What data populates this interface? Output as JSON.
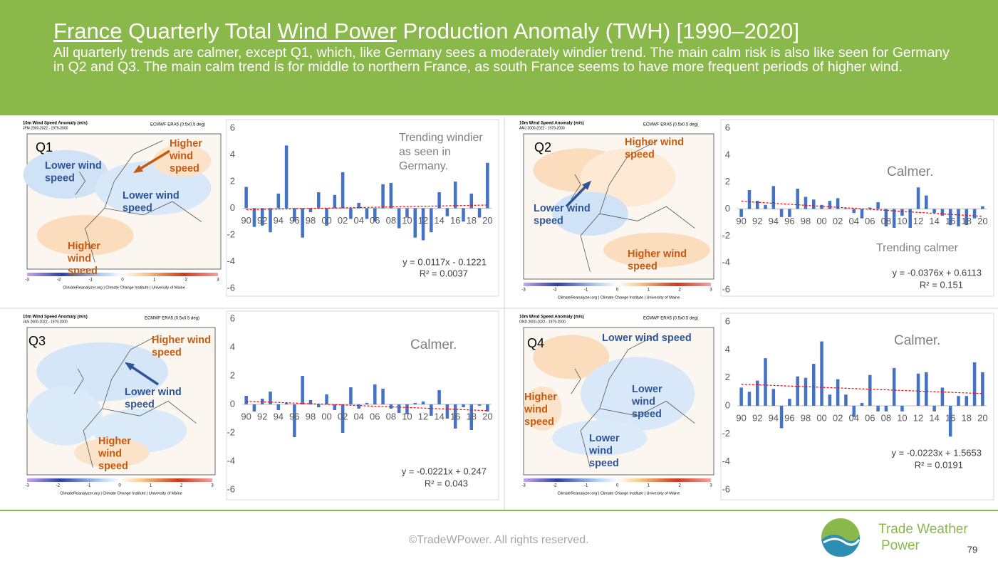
{
  "header": {
    "title_parts": [
      {
        "text": "France",
        "underline": true
      },
      {
        "text": " Quarterly Total ",
        "underline": false
      },
      {
        "text": "Wind Power",
        "underline": true
      },
      {
        "text": " Production Anomaly (TWH) [1990–2020]",
        "underline": false
      }
    ],
    "subtitle": "All quarterly trends are calmer, except Q1, which, like Germany sees a moderately windier trend. The main calm risk is also like seen for Germany in Q2 and Q3. The main calm trend is for middle to northern France, as south France seems to have more frequent periods of higher wind."
  },
  "maps": [
    {
      "quarter": "Q1",
      "title": "10m Wind Speed Anomaly (m/s)",
      "period": "JFM 2000-2022 - 1979-2000",
      "source": "ECMWF ERA5 (0.5x0.5 deg)",
      "colorbar_ticks": [
        -3,
        -2,
        -1,
        0,
        1,
        2,
        3
      ],
      "credit": "ClimateReanalyzer.org | Climate Change Institute | University of Maine",
      "labels": [
        {
          "lines": [
            "Lower wind",
            "speed"
          ],
          "color": "#2e5597"
        },
        {
          "lines": [
            "Higher",
            "wind",
            "speed"
          ],
          "color": "#c55a11"
        },
        {
          "lines": [
            "Lower wind",
            "speed"
          ],
          "color": "#2e5597"
        },
        {
          "lines": [
            "Higher",
            "wind",
            "speed"
          ],
          "color": "#c55a11"
        }
      ]
    },
    {
      "quarter": "Q2",
      "title": "10m Wind Speed Anomaly (m/s)",
      "period": "AMJ 2000-2022 - 1979-2000",
      "source": "ECMWF ERA5 (0.5x0.5 deg)",
      "colorbar_ticks": [
        -3,
        -2,
        -1,
        0,
        1,
        2,
        3
      ],
      "credit": "ClimateReanalyzer.org | Climate Change Institute | University of Maine",
      "labels": [
        {
          "lines": [
            "Higher wind",
            "speed"
          ],
          "color": "#c55a11"
        },
        {
          "lines": [
            "Lower wind",
            "speed"
          ],
          "color": "#2e5597"
        },
        {
          "lines": [
            "Higher wind",
            "speed"
          ],
          "color": "#c55a11"
        }
      ]
    },
    {
      "quarter": "Q3",
      "title": "10m Wind Speed Anomaly (m/s)",
      "period": "JAS 2000-2022 - 1979-2000",
      "source": "ECMWF ERA5 (0.5x0.5 deg)",
      "colorbar_ticks": [
        -3,
        -2,
        -1,
        0,
        1,
        2,
        3
      ],
      "credit": "ClimateReanalyzer.org | Climate Change Institute | University of Maine",
      "labels": [
        {
          "lines": [
            "Higher wind",
            "speed"
          ],
          "color": "#c55a11"
        },
        {
          "lines": [
            "Lower wind",
            "speed"
          ],
          "color": "#2e5597"
        },
        {
          "lines": [
            "Higher",
            "wind",
            "speed"
          ],
          "color": "#c55a11"
        }
      ]
    },
    {
      "quarter": "Q4",
      "title": "10m Wind Speed Anomaly (m/s)",
      "period": "OND 2000-2022 - 1979-2000",
      "source": "ECMWF ERA5 (0.5x0.5 deg)",
      "colorbar_ticks": [
        -3,
        -2,
        -1,
        0,
        1,
        2,
        3
      ],
      "credit": "ClimateReanalyzer.org | Climate Change Institute | University of Maine",
      "labels": [
        {
          "lines": [
            "Lower wind speed"
          ],
          "color": "#2e5597"
        },
        {
          "lines": [
            "Higher",
            "wind",
            "speed"
          ],
          "color": "#c55a11"
        },
        {
          "lines": [
            "Lower",
            "wind",
            "speed"
          ],
          "color": "#2e5597"
        },
        {
          "lines": [
            "Lower",
            "wind",
            "speed"
          ],
          "color": "#2e5597"
        }
      ]
    }
  ],
  "chart_data": [
    {
      "type": "bar",
      "categories": [
        "90",
        null,
        "92",
        null,
        "94",
        null,
        "96",
        null,
        "98",
        null,
        "00",
        null,
        "02",
        null,
        "04",
        null,
        "06",
        null,
        "08",
        null,
        "10",
        null,
        "12",
        null,
        "14",
        null,
        "16",
        null,
        "18",
        null,
        "20"
      ],
      "values": [
        1.6,
        -1.4,
        -1.3,
        -1.8,
        1.1,
        4.7,
        -1.0,
        -2.2,
        -0.3,
        1.2,
        -1.3,
        1.0,
        2.7,
        -0.8,
        0.4,
        -0.8,
        -1.0,
        1.8,
        1.9,
        -1.5,
        -0.7,
        -2.2,
        -2.4,
        -1.8,
        1.2,
        -0.6,
        2.0,
        -1.0,
        1.1,
        -0.7,
        3.4
      ],
      "color": "#4472c4",
      "ylim": [
        -6,
        6
      ],
      "yticks": [
        -6,
        -4,
        -2,
        0,
        2,
        4,
        6
      ],
      "grid": false,
      "trendline": {
        "slope": 0.0117,
        "intercept": -0.1221,
        "color": "#ff0000",
        "label": "y = 0.0117x - 0.1221",
        "r2_label": "R² = 0.0037"
      },
      "annotations": [
        [
          "Trending windier",
          "as seen in",
          "Germany."
        ]
      ]
    },
    {
      "type": "bar",
      "categories": [
        "90",
        null,
        "92",
        null,
        "94",
        null,
        "96",
        null,
        "98",
        null,
        "00",
        null,
        "02",
        null,
        "04",
        null,
        "06",
        null,
        "08",
        null,
        "10",
        null,
        "12",
        null,
        "14",
        null,
        "16",
        null,
        "18",
        null,
        "20"
      ],
      "values": [
        -0.6,
        1.4,
        0.6,
        0.3,
        1.7,
        -0.6,
        -0.6,
        1.5,
        0.9,
        0.7,
        0.3,
        0.6,
        0.8,
        0.05,
        -0.3,
        -0.7,
        0.1,
        0.5,
        -1.3,
        -1.4,
        -0.5,
        -1.4,
        1.6,
        1.0,
        -0.3,
        -0.5,
        -1.2,
        -1.3,
        -1.2,
        -0.7,
        0.2
      ],
      "color": "#4472c4",
      "ylim": [
        -6,
        6
      ],
      "yticks": [
        -6,
        -4,
        -2,
        0,
        2,
        4,
        6
      ],
      "grid": false,
      "trendline": {
        "slope": -0.0376,
        "intercept": 0.6113,
        "color": "#ff0000",
        "label": "y = -0.0376x + 0.6113",
        "r2_label": "R² = 0.151"
      },
      "annotations": [
        [
          "Calmer."
        ],
        [
          "Trending calmer"
        ]
      ]
    },
    {
      "type": "bar",
      "categories": [
        "90",
        null,
        "92",
        null,
        "94",
        null,
        "96",
        null,
        "98",
        null,
        "00",
        null,
        "02",
        null,
        "04",
        null,
        "06",
        null,
        "08",
        null,
        "10",
        null,
        "12",
        null,
        "14",
        null,
        "16",
        null,
        "18",
        null,
        "20"
      ],
      "values": [
        0.6,
        -0.5,
        0.4,
        0.9,
        -0.4,
        0.1,
        -2.3,
        2.0,
        0.3,
        -0.2,
        0.7,
        -0.4,
        -2.0,
        1.2,
        -0.3,
        0.1,
        1.4,
        1.1,
        -0.3,
        -0.6,
        -0.7,
        0.1,
        0.2,
        -0.8,
        1.0,
        -1.0,
        -1.7,
        -0.2,
        -1.8,
        -0.1,
        -0.5
      ],
      "color": "#4472c4",
      "ylim": [
        -6,
        6
      ],
      "yticks": [
        -6,
        -4,
        -2,
        0,
        2,
        4,
        6
      ],
      "grid": false,
      "trendline": {
        "slope": -0.0221,
        "intercept": 0.247,
        "color": "#ff0000",
        "label": "y = -0.0221x + 0.247",
        "r2_label": "R² = 0.043"
      },
      "annotations": [
        [
          "Calmer."
        ]
      ]
    },
    {
      "type": "bar",
      "categories": [
        "90",
        null,
        "92",
        null,
        "94",
        null,
        "96",
        null,
        "98",
        null,
        "00",
        null,
        "02",
        null,
        "04",
        null,
        "06",
        null,
        "08",
        null,
        "10",
        null,
        "12",
        null,
        "14",
        null,
        "16",
        null,
        "18",
        null,
        "20"
      ],
      "values": [
        1.3,
        1.0,
        1.8,
        3.4,
        1.2,
        -1.6,
        0.5,
        2.1,
        2.0,
        3.0,
        4.6,
        0.8,
        1.9,
        0.8,
        -0.8,
        0.2,
        2.2,
        -0.4,
        -0.4,
        2.7,
        -0.4,
        0,
        2.3,
        2.4,
        -0.4,
        1.3,
        -2.2,
        0.7,
        0.7,
        3.1,
        2.4
      ],
      "color": "#4472c4",
      "ylim": [
        -6,
        6
      ],
      "yticks": [
        -6,
        -4,
        -2,
        0,
        2,
        4,
        6
      ],
      "grid": false,
      "trendline": {
        "slope": -0.0223,
        "intercept": 1.5653,
        "color": "#ff0000",
        "label": "y = -0.0223x + 1.5653",
        "r2_label": "R² = 0.0191"
      },
      "annotations": [
        [
          "Calmer."
        ]
      ]
    }
  ],
  "footer": {
    "copyright": "©TradeWPower. All rights reserved.",
    "logo_lines": [
      "Trade Weather",
      "Power"
    ],
    "page_number": 79
  }
}
